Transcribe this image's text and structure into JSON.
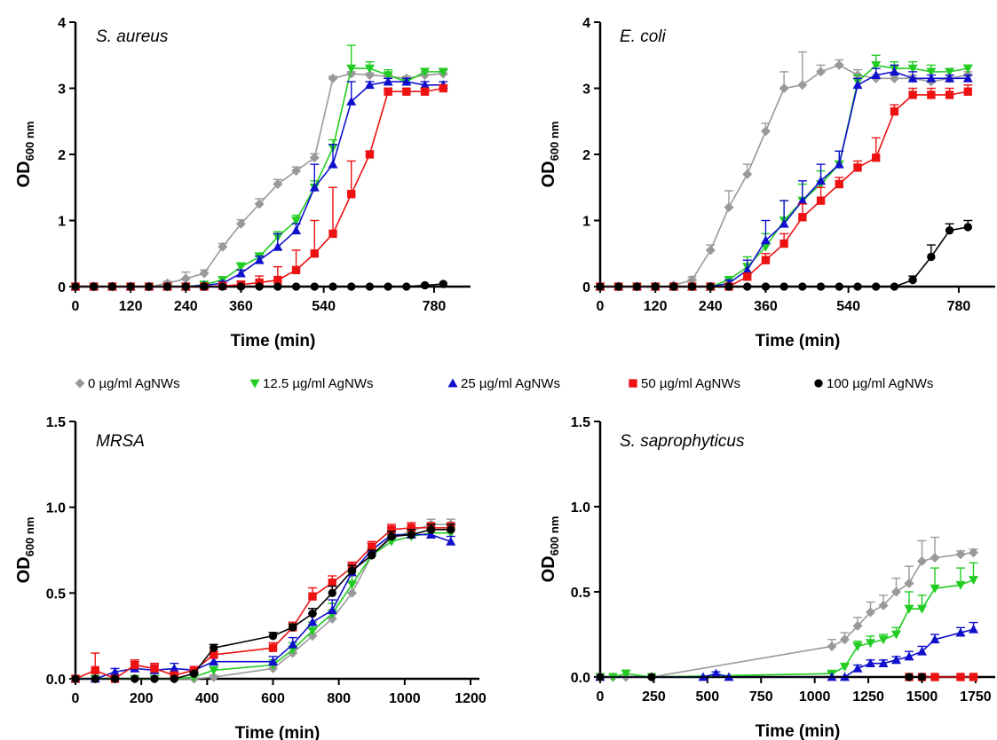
{
  "legend": [
    {
      "label": "0 µg/ml AgNWs",
      "color": "#999999",
      "marker": "diamond"
    },
    {
      "label": "12.5 µg/ml AgNWs",
      "color": "#22cc22",
      "marker": "triangle-down"
    },
    {
      "label": "25 µg/ml AgNWs",
      "color": "#1010cc",
      "marker": "triangle-up"
    },
    {
      "label": "50 µg/ml AgNWs",
      "color": "#ee1111",
      "marker": "square"
    },
    {
      "label": "100 µg/ml AgNWs",
      "color": "#000000",
      "marker": "circle"
    }
  ],
  "chart_data": [
    {
      "type": "line",
      "title": "S. aureus",
      "xlabel": "Time (min)",
      "ylabel": {
        "main": "OD",
        "sub": "600 nm"
      },
      "xlim": [
        0,
        840
      ],
      "ylim": [
        0,
        4
      ],
      "xticks": [
        0,
        120,
        240,
        360,
        540,
        780
      ],
      "yticks": [
        0,
        1,
        2,
        3,
        4
      ],
      "x": [
        0,
        40,
        80,
        120,
        160,
        200,
        240,
        280,
        320,
        360,
        400,
        440,
        480,
        520,
        560,
        600,
        640,
        680,
        720,
        760,
        800
      ],
      "series": [
        {
          "name": "0 µg/ml AgNWs",
          "values": [
            0,
            0,
            0,
            0,
            0,
            0.05,
            0.12,
            0.2,
            0.6,
            0.95,
            1.25,
            1.55,
            1.75,
            1.95,
            3.15,
            3.22,
            3.2,
            3.18,
            3.15,
            3.2,
            3.22
          ],
          "errors": [
            0,
            0,
            0,
            0,
            0,
            0.03,
            0.1,
            0.05,
            0.05,
            0.06,
            0.08,
            0.07,
            0.06,
            0.06,
            0.03,
            0.03,
            0.03,
            0.03,
            0.03,
            0.05,
            0.05
          ]
        },
        {
          "name": "12.5 µg/ml AgNWs",
          "values": [
            0,
            0,
            0,
            0,
            0,
            0,
            0,
            0.03,
            0.1,
            0.3,
            0.45,
            0.75,
            1.0,
            1.5,
            2.1,
            3.3,
            3.3,
            3.2,
            3.1,
            3.25,
            3.25
          ],
          "errors": [
            0,
            0,
            0,
            0,
            0,
            0,
            0,
            0.03,
            0.04,
            0.06,
            0.06,
            0.08,
            0.08,
            0.1,
            0.12,
            0.35,
            0.1,
            0.08,
            0.05,
            0.05,
            0.05
          ]
        },
        {
          "name": "25 µg/ml AgNWs",
          "values": [
            0,
            0,
            0,
            0,
            0,
            0,
            0,
            0.02,
            0.05,
            0.2,
            0.4,
            0.6,
            0.85,
            1.5,
            1.85,
            2.8,
            3.05,
            3.1,
            3.1,
            3.05,
            3.05
          ],
          "errors": [
            0,
            0,
            0,
            0,
            0,
            0,
            0,
            0.02,
            0.03,
            0.05,
            0.06,
            0.2,
            0.1,
            0.35,
            0.3,
            0.3,
            0.05,
            0.05,
            0.05,
            0.05,
            0.05
          ]
        },
        {
          "name": "50 µg/ml AgNWs",
          "values": [
            0,
            0,
            0,
            0,
            0,
            0,
            0,
            0,
            0.01,
            0.03,
            0.06,
            0.1,
            0.25,
            0.5,
            0.8,
            1.4,
            2.0,
            2.95,
            2.95,
            2.95,
            3.0
          ],
          "errors": [
            0,
            0,
            0,
            0,
            0,
            0,
            0,
            0,
            0.02,
            0.05,
            0.1,
            0.2,
            0.3,
            0.5,
            0.7,
            0.5,
            0.05,
            0.05,
            0.05,
            0.05,
            0.05
          ]
        },
        {
          "name": "100 µg/ml AgNWs",
          "values": [
            0,
            0,
            0,
            0,
            0,
            0,
            0,
            0,
            0,
            0,
            0,
            0,
            0,
            0,
            0,
            0,
            0,
            0,
            0,
            0.02,
            0.04
          ],
          "errors": [
            0,
            0,
            0,
            0,
            0,
            0,
            0,
            0,
            0,
            0,
            0,
            0,
            0,
            0,
            0,
            0,
            0,
            0,
            0,
            0,
            0
          ]
        }
      ]
    },
    {
      "type": "line",
      "title": "E. coli",
      "xlabel": "Time (min)",
      "ylabel": {
        "main": "OD",
        "sub": "600 nm"
      },
      "xlim": [
        0,
        840
      ],
      "ylim": [
        0,
        4
      ],
      "xticks": [
        0,
        120,
        240,
        360,
        540,
        780
      ],
      "yticks": [
        0,
        1,
        2,
        3,
        4
      ],
      "x": [
        0,
        40,
        80,
        120,
        160,
        200,
        240,
        280,
        320,
        360,
        400,
        440,
        480,
        520,
        560,
        600,
        640,
        680,
        720,
        760,
        800
      ],
      "series": [
        {
          "name": "0 µg/ml AgNWs",
          "values": [
            0,
            0,
            0,
            0,
            0.02,
            0.1,
            0.55,
            1.2,
            1.7,
            2.35,
            3.0,
            3.05,
            3.25,
            3.35,
            3.2,
            3.15,
            3.15,
            3.15,
            3.1,
            3.15,
            3.2
          ],
          "errors": [
            0,
            0,
            0,
            0,
            0.02,
            0.05,
            0.08,
            0.25,
            0.15,
            0.12,
            0.25,
            0.5,
            0.1,
            0.08,
            0.08,
            0.05,
            0.05,
            0.05,
            0.05,
            0.05,
            0.05
          ]
        },
        {
          "name": "12.5 µg/ml AgNWs",
          "values": [
            0,
            0,
            0,
            0,
            0,
            0,
            0,
            0.1,
            0.3,
            0.6,
            1.0,
            1.3,
            1.55,
            1.85,
            3.1,
            3.35,
            3.3,
            3.3,
            3.25,
            3.25,
            3.3
          ],
          "errors": [
            0,
            0,
            0,
            0,
            0,
            0,
            0,
            0.05,
            0.15,
            0.2,
            0.3,
            0.25,
            0.2,
            0.2,
            0.1,
            0.15,
            0.1,
            0.1,
            0.1,
            0.05,
            0.05
          ]
        },
        {
          "name": "25 µg/ml AgNWs",
          "values": [
            0,
            0,
            0,
            0,
            0,
            0,
            0,
            0.05,
            0.25,
            0.7,
            0.95,
            1.3,
            1.6,
            1.85,
            3.05,
            3.2,
            3.25,
            3.15,
            3.15,
            3.15,
            3.15
          ],
          "errors": [
            0,
            0,
            0,
            0,
            0,
            0,
            0,
            0.05,
            0.15,
            0.3,
            0.35,
            0.3,
            0.25,
            0.2,
            0.1,
            0.1,
            0.1,
            0.1,
            0.05,
            0.05,
            0.05
          ]
        },
        {
          "name": "50 µg/ml AgNWs",
          "values": [
            0,
            0,
            0,
            0,
            0,
            0,
            0,
            0,
            0.15,
            0.4,
            0.65,
            1.05,
            1.3,
            1.55,
            1.8,
            1.95,
            2.65,
            2.9,
            2.9,
            2.9,
            2.95
          ],
          "errors": [
            0,
            0,
            0,
            0,
            0,
            0,
            0,
            0,
            0.05,
            0.1,
            0.15,
            0.2,
            0.2,
            0.1,
            0.1,
            0.3,
            0.1,
            0.1,
            0.1,
            0.1,
            0.1
          ]
        },
        {
          "name": "100 µg/ml AgNWs",
          "values": [
            0,
            0,
            0,
            0,
            0,
            0,
            0,
            0,
            0,
            0,
            0,
            0,
            0,
            0,
            0,
            0,
            0,
            0.1,
            0.45,
            0.85,
            0.9
          ],
          "errors": [
            0,
            0,
            0,
            0,
            0,
            0,
            0,
            0,
            0,
            0,
            0,
            0,
            0,
            0,
            0,
            0,
            0,
            0.06,
            0.18,
            0.1,
            0.1
          ]
        }
      ]
    },
    {
      "type": "line",
      "title": "MRSA",
      "xlabel": "Time (min)",
      "ylabel": {
        "main": "OD",
        "sub": "600 nm"
      },
      "xlim": [
        0,
        1200
      ],
      "ylim": [
        0,
        1.5
      ],
      "xticks": [
        0,
        200,
        400,
        600,
        800,
        1000,
        1200
      ],
      "yticks": [
        0.0,
        0.5,
        1.0,
        1.5
      ],
      "ytick_labels": [
        "0.0",
        "0.5",
        "1.0",
        "1.5"
      ],
      "x": [
        0,
        60,
        120,
        180,
        240,
        300,
        360,
        420,
        600,
        660,
        720,
        780,
        840,
        900,
        960,
        1020,
        1080,
        1140
      ],
      "series": [
        {
          "name": "0 µg/ml AgNWs",
          "values": [
            0,
            0,
            0,
            0,
            0,
            0,
            0,
            0.01,
            0.06,
            0.15,
            0.25,
            0.35,
            0.5,
            0.72,
            0.82,
            0.86,
            0.9,
            0.9
          ],
          "errors": [
            0,
            0,
            0,
            0,
            0,
            0,
            0,
            0.01,
            0.02,
            0.03,
            0.04,
            0.05,
            0.06,
            0.04,
            0.04,
            0.03,
            0.03,
            0.03
          ]
        },
        {
          "name": "12.5 µg/ml AgNWs",
          "values": [
            0,
            0,
            0,
            0,
            0,
            0,
            0.01,
            0.05,
            0.08,
            0.17,
            0.28,
            0.38,
            0.55,
            0.72,
            0.8,
            0.83,
            0.85,
            0.85
          ],
          "errors": [
            0,
            0,
            0,
            0,
            0,
            0,
            0.01,
            0.02,
            0.03,
            0.04,
            0.05,
            0.06,
            0.07,
            0.04,
            0.04,
            0.03,
            0.03,
            0.03
          ]
        },
        {
          "name": "25 µg/ml AgNWs",
          "values": [
            0,
            0,
            0.04,
            0.06,
            0.05,
            0.06,
            0.05,
            0.1,
            0.1,
            0.2,
            0.33,
            0.4,
            0.62,
            0.75,
            0.84,
            0.84,
            0.84,
            0.8
          ],
          "errors": [
            0,
            0,
            0.02,
            0.04,
            0.03,
            0.03,
            0.02,
            0.02,
            0.03,
            0.04,
            0.05,
            0.06,
            0.05,
            0.04,
            0.04,
            0.03,
            0.04,
            0.03
          ]
        },
        {
          "name": "50 µg/ml AgNWs",
          "values": [
            0,
            0.05,
            0,
            0.08,
            0.06,
            0.02,
            0.05,
            0.14,
            0.18,
            0.3,
            0.48,
            0.56,
            0.65,
            0.77,
            0.87,
            0.88,
            0.88,
            0.88
          ],
          "errors": [
            0,
            0.1,
            0,
            0.03,
            0.03,
            0.02,
            0.02,
            0.02,
            0.03,
            0.03,
            0.05,
            0.04,
            0.03,
            0.03,
            0.03,
            0.03,
            0.03,
            0.03
          ]
        },
        {
          "name": "100 µg/ml AgNWs",
          "values": [
            0,
            0,
            0,
            0,
            0,
            0,
            0.03,
            0.18,
            0.25,
            0.3,
            0.38,
            0.5,
            0.63,
            0.72,
            0.83,
            0.84,
            0.87,
            0.87
          ],
          "errors": [
            0,
            0,
            0,
            0,
            0,
            0,
            0.01,
            0.02,
            0.02,
            0.02,
            0.03,
            0.04,
            0.03,
            0.03,
            0.03,
            0.03,
            0.03,
            0.03
          ]
        }
      ]
    },
    {
      "type": "line",
      "title": "S. saprophyticus",
      "xlabel": "Time (min)",
      "ylabel": {
        "main": "OD",
        "sub": "600 nm"
      },
      "xlim": [
        0,
        1800
      ],
      "ylim": [
        0,
        1.5
      ],
      "xticks": [
        0,
        250,
        500,
        750,
        1000,
        1250,
        1500,
        1750
      ],
      "yticks": [
        0.0,
        0.5,
        1.0,
        1.5
      ],
      "ytick_labels": [
        "0.0",
        "0.5",
        "1.0",
        "1.5"
      ],
      "series": [
        {
          "name": "0 µg/ml AgNWs",
          "x": [
            0,
            60,
            120,
            240,
            1080,
            1140,
            1200,
            1260,
            1320,
            1380,
            1440,
            1500,
            1560,
            1680,
            1740
          ],
          "values": [
            0,
            0,
            0,
            0,
            0.18,
            0.22,
            0.3,
            0.38,
            0.42,
            0.5,
            0.55,
            0.68,
            0.7,
            0.72,
            0.73
          ],
          "errors": [
            0,
            0,
            0,
            0,
            0.04,
            0.04,
            0.05,
            0.06,
            0.06,
            0.08,
            0.1,
            0.12,
            0.12,
            0.02,
            0.02
          ]
        },
        {
          "name": "12.5 µg/ml AgNWs",
          "x": [
            0,
            60,
            120,
            240,
            1080,
            1140,
            1200,
            1260,
            1320,
            1380,
            1440,
            1500,
            1560,
            1680,
            1740
          ],
          "values": [
            0,
            0,
            0.02,
            0,
            0.02,
            0.06,
            0.18,
            0.2,
            0.22,
            0.25,
            0.4,
            0.4,
            0.52,
            0.54,
            0.57
          ],
          "errors": [
            0,
            0,
            0.02,
            0,
            0.01,
            0.02,
            0.03,
            0.04,
            0.03,
            0.04,
            0.1,
            0.08,
            0.12,
            0.1,
            0.1
          ]
        },
        {
          "name": "25 µg/ml AgNWs",
          "x": [
            0,
            480,
            540,
            600,
            1080,
            1140,
            1200,
            1260,
            1320,
            1380,
            1440,
            1500,
            1560,
            1680,
            1740
          ],
          "values": [
            0,
            0,
            0.02,
            0,
            0,
            0,
            0.05,
            0.08,
            0.08,
            0.1,
            0.12,
            0.15,
            0.22,
            0.26,
            0.28
          ],
          "errors": [
            0,
            0,
            0.01,
            0,
            0,
            0,
            0.02,
            0.02,
            0.02,
            0.02,
            0.03,
            0.03,
            0.03,
            0.03,
            0.04
          ]
        },
        {
          "name": "50 µg/ml AgNWs",
          "x": [
            1440,
            1500,
            1560,
            1680,
            1740
          ],
          "values": [
            0,
            0,
            0,
            0,
            0
          ],
          "errors": [
            0,
            0,
            0,
            0,
            0
          ]
        },
        {
          "name": "100 µg/ml AgNWs",
          "x": [
            0,
            240,
            1440,
            1500
          ],
          "values": [
            0,
            0,
            0,
            0
          ],
          "errors": [
            0,
            0,
            0,
            0
          ]
        }
      ]
    }
  ]
}
